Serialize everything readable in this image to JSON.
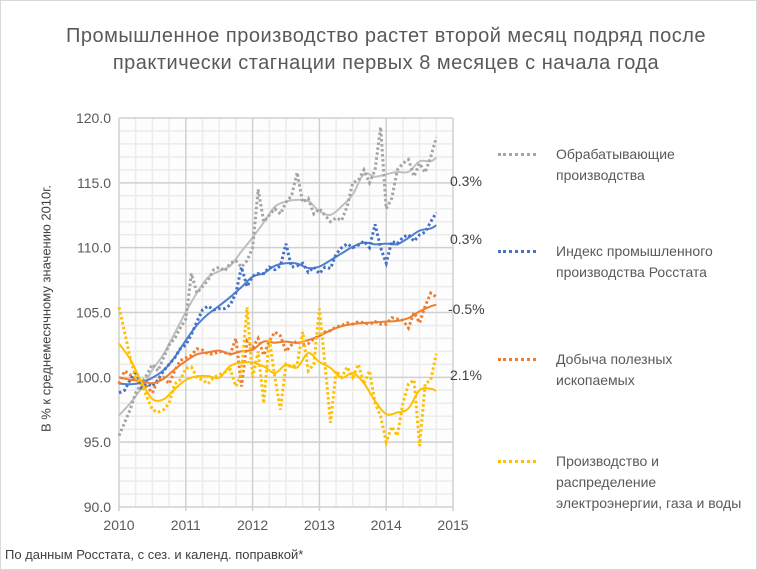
{
  "chart_data": {
    "type": "line",
    "title": "Промышленное производство растет второй месяц подряд после практически стагнации первых 8 месяцев с начала года",
    "ylabel": "В % к среднемесячному значению 2010г.",
    "xlabel": "",
    "source_note": "По данным Росстата, с сез. и календ. поправкой*",
    "xlim": [
      2010,
      2015
    ],
    "ylim": [
      90,
      120
    ],
    "x_ticks": [
      "2010",
      "2011",
      "2012",
      "2013",
      "2014",
      "2015"
    ],
    "y_ticks": [
      "90.0",
      "95.0",
      "100.0",
      "105.0",
      "110.0",
      "115.0",
      "120.0"
    ],
    "x_start": 2010,
    "x_step_months": 1,
    "grid": true,
    "legend_position": "right",
    "series": [
      {
        "name": "Обрабатывающие производства",
        "color": "#a5a5a5",
        "trend_color": "#bfbfbf",
        "change_label": "0.3%",
        "values": [
          95.5,
          96.5,
          97.5,
          98.8,
          99.5,
          100.2,
          101,
          100.5,
          101.5,
          102.5,
          103,
          103.8,
          104.5,
          108,
          106.5,
          107,
          107.5,
          108.3,
          108.5,
          108.2,
          108.8,
          109,
          108.5,
          109,
          110,
          114.5,
          112,
          112.5,
          113,
          112.6,
          113.5,
          114,
          115.8,
          113.5,
          113.8,
          112.6,
          113,
          112.5,
          112,
          112.3,
          112.1,
          113.2,
          115,
          115.2,
          116,
          115,
          116,
          119.3,
          113,
          113.8,
          116,
          116.5,
          116.8,
          115.5,
          116.5,
          115.8,
          117,
          118.5
        ]
      },
      {
        "name": "Индекс промышленного производства Росстата",
        "color": "#4472c4",
        "trend_color": "#4f7fd0",
        "change_label": "0.3%",
        "values": [
          98.8,
          99,
          99.8,
          100.5,
          99.2,
          99.5,
          99.3,
          99.8,
          100.5,
          101,
          101.5,
          102.2,
          102.5,
          103.3,
          104.3,
          105.2,
          105.5,
          105.2,
          105.3,
          105.3,
          105.6,
          106.5,
          108.5,
          107,
          107.8,
          108,
          108,
          108.5,
          108.3,
          108.6,
          110.3,
          108.5,
          108.6,
          108.8,
          108.1,
          108.5,
          108,
          108.5,
          108.4,
          109.5,
          110,
          110.3,
          110,
          110.2,
          110.5,
          110,
          111.8,
          110,
          108.8,
          110.5,
          110.3,
          110.8,
          111,
          110.5,
          111,
          111.2,
          112,
          112.7
        ]
      },
      {
        "name": "Добыча полезных ископаемых",
        "color": "#ed7d31",
        "trend_color": "#ed7d31",
        "change_label": "-0.5%",
        "values": [
          99.5,
          100.5,
          100.2,
          99.8,
          99.6,
          99.3,
          98.8,
          99.8,
          100,
          99.5,
          100.5,
          101.3,
          101.5,
          101.7,
          102.2,
          102.1,
          101.8,
          101.8,
          102,
          101.9,
          101.8,
          103,
          99.3,
          102.8,
          102.3,
          103,
          101.7,
          102.8,
          103.5,
          103.2,
          102,
          102.5,
          102.8,
          102.5,
          102.6,
          103,
          103.2,
          103.5,
          103.6,
          103.9,
          104,
          104.2,
          104.1,
          104.3,
          104.2,
          104.1,
          104.3,
          104.1,
          104.1,
          104.6,
          104.5,
          104.4,
          103.8,
          105,
          104.2,
          105.5,
          106.5,
          106.2
        ]
      },
      {
        "name": "Производство и распределение электроэнергии, газа и воды",
        "color": "#ffc000",
        "trend_color": "#ffc000",
        "change_label": "2.1%",
        "values": [
          105.4,
          103.5,
          101.5,
          100,
          99.5,
          98.5,
          97.5,
          97.3,
          97.5,
          98,
          99.5,
          99.8,
          100.7,
          100.8,
          100,
          99.8,
          99.5,
          100,
          100.2,
          100.4,
          100.6,
          99.3,
          100.3,
          105.4,
          100,
          102,
          98,
          103,
          100,
          97.5,
          101,
          100.8,
          101,
          103.5,
          100.5,
          101,
          105.3,
          101,
          96.5,
          100.5,
          100,
          100.8,
          100,
          101,
          99.5,
          100.5,
          98,
          97,
          95,
          96.2,
          95.5,
          98,
          99.5,
          99.8,
          94.7,
          99.5,
          99.8,
          101.8
        ]
      }
    ]
  }
}
